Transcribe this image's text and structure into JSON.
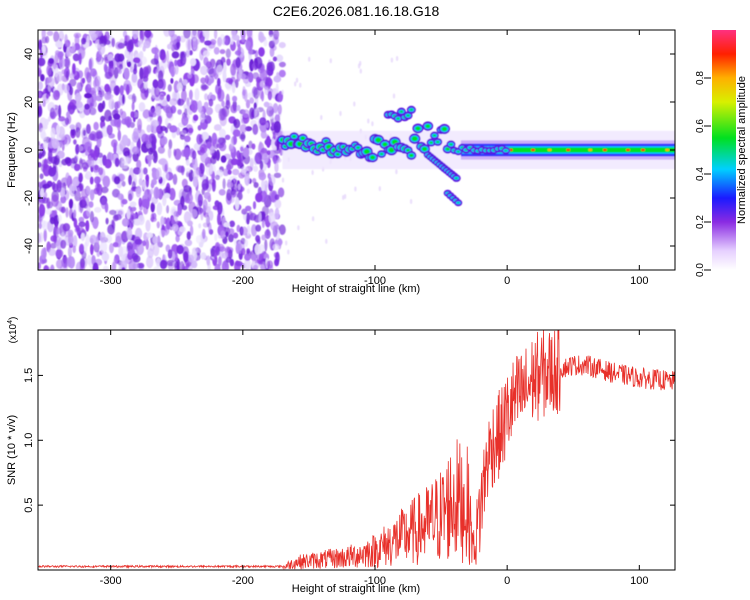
{
  "title": "C2E6.2026.081.16.18.G18",
  "chart_data": [
    {
      "type": "heatmap",
      "title": "C2E6.2026.081.16.18.G18",
      "xlabel": "Height of straight line (km)",
      "ylabel": "Frequency (Hz)",
      "xlim": [
        -355,
        127
      ],
      "ylim": [
        -50,
        50
      ],
      "x_ticks": [
        -300,
        -200,
        -100,
        0,
        100
      ],
      "y_ticks": [
        -40,
        -20,
        0,
        20,
        40
      ],
      "colorbar": {
        "label": "Normalized spectral amplitude",
        "range": [
          0,
          1
        ],
        "ticks": [
          0.0,
          0.2,
          0.4,
          0.6,
          0.8
        ]
      },
      "features": {
        "noise_region_km": [
          -355,
          -170
        ],
        "signal_track_hz": 0
      }
    },
    {
      "type": "line",
      "xlabel": "Height of straight line (km)",
      "ylabel": "SNR (10 * v/v)",
      "exponent_label": "(x10^4)",
      "exponent_base": "(x10",
      "exponent_power": "4",
      "xlim": [
        -355,
        127
      ],
      "ylim": [
        0,
        1.85
      ],
      "x_ticks": [
        -300,
        -200,
        -100,
        0,
        100
      ],
      "y_ticks": [
        0.5,
        1.0,
        1.5
      ],
      "y_tick_labels": [
        "0.5",
        "1.0",
        "1.5"
      ],
      "color": "#e8302a",
      "series": [
        {
          "name": "SNR",
          "x": [
            -355,
            -300,
            -250,
            -200,
            -170,
            -160,
            -140,
            -120,
            -100,
            -90,
            -80,
            -70,
            -60,
            -50,
            -40,
            -30,
            -25,
            -20,
            -15,
            -10,
            -5,
            0,
            5,
            10,
            15,
            20,
            25,
            30,
            40,
            50,
            60,
            70,
            80,
            90,
            100,
            110,
            120,
            127
          ],
          "values": [
            0.02,
            0.02,
            0.02,
            0.02,
            0.02,
            0.06,
            0.08,
            0.1,
            0.15,
            0.2,
            0.25,
            0.3,
            0.35,
            0.42,
            0.55,
            0.5,
            0.15,
            0.5,
            0.85,
            1.0,
            1.05,
            1.2,
            1.3,
            1.35,
            1.4,
            1.48,
            1.5,
            1.52,
            1.55,
            1.58,
            1.58,
            1.55,
            1.52,
            1.5,
            1.48,
            1.47,
            1.46,
            1.45
          ]
        }
      ]
    }
  ]
}
